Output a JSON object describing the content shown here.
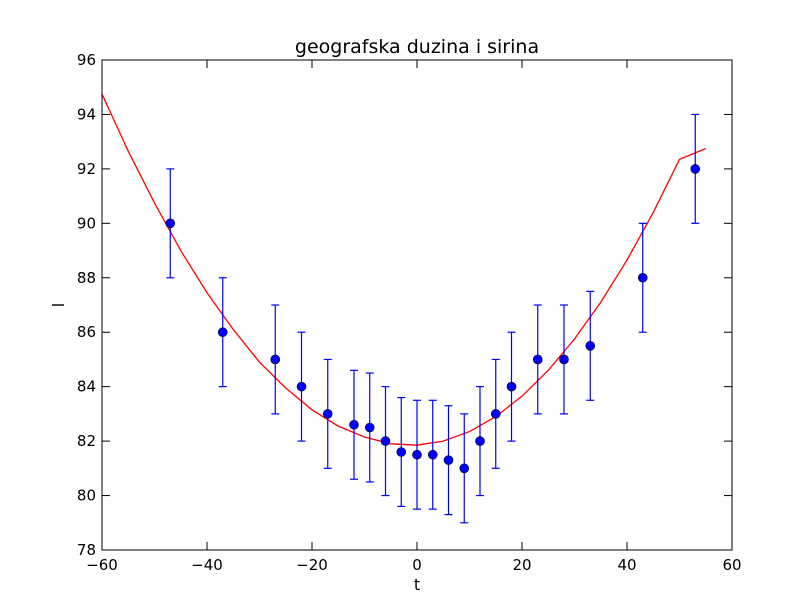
{
  "chart_data": {
    "type": "scatter",
    "title": "geografska duzina i sirina",
    "xlabel": "t",
    "ylabel": "l",
    "xlim": [
      -60,
      60
    ],
    "ylim": [
      78,
      96
    ],
    "xticks": [
      -60,
      -40,
      -20,
      0,
      20,
      40,
      60
    ],
    "yticks": [
      78,
      80,
      82,
      84,
      86,
      88,
      90,
      92,
      94,
      96
    ],
    "grid": false,
    "series": [
      {
        "kind": "errorbar",
        "color": "#0000ff",
        "x": [
          -47,
          -37,
          -27,
          -22,
          -17,
          -12,
          -9,
          -6,
          -3,
          0,
          3,
          6,
          9,
          12,
          15,
          18,
          23,
          28,
          33,
          43,
          53
        ],
        "y": [
          90,
          86,
          85,
          84,
          83,
          82.6,
          82.5,
          82,
          81.6,
          81.5,
          81.5,
          81.3,
          81,
          82,
          83,
          84,
          85,
          85,
          85.5,
          88,
          92
        ],
        "yerr": [
          2,
          2,
          2,
          2,
          2,
          2,
          2,
          2,
          2,
          2,
          2,
          2,
          2,
          2,
          2,
          2,
          2,
          2,
          2,
          2,
          2
        ]
      },
      {
        "kind": "line",
        "color": "#ff0000",
        "x": [
          -60,
          -55,
          -50,
          -45,
          -40,
          -35,
          -30,
          -25,
          -20,
          -15,
          -10,
          -5,
          0,
          5,
          10,
          15,
          20,
          25,
          30,
          35,
          40,
          45,
          50,
          55
        ],
        "y": [
          94.75,
          92.65,
          90.75,
          89.0,
          87.45,
          86.1,
          84.9,
          83.95,
          83.15,
          82.55,
          82.15,
          81.9,
          81.85,
          82.0,
          82.35,
          82.9,
          83.65,
          84.6,
          85.75,
          87.1,
          88.65,
          90.4,
          92.35,
          92.75
        ]
      }
    ]
  }
}
